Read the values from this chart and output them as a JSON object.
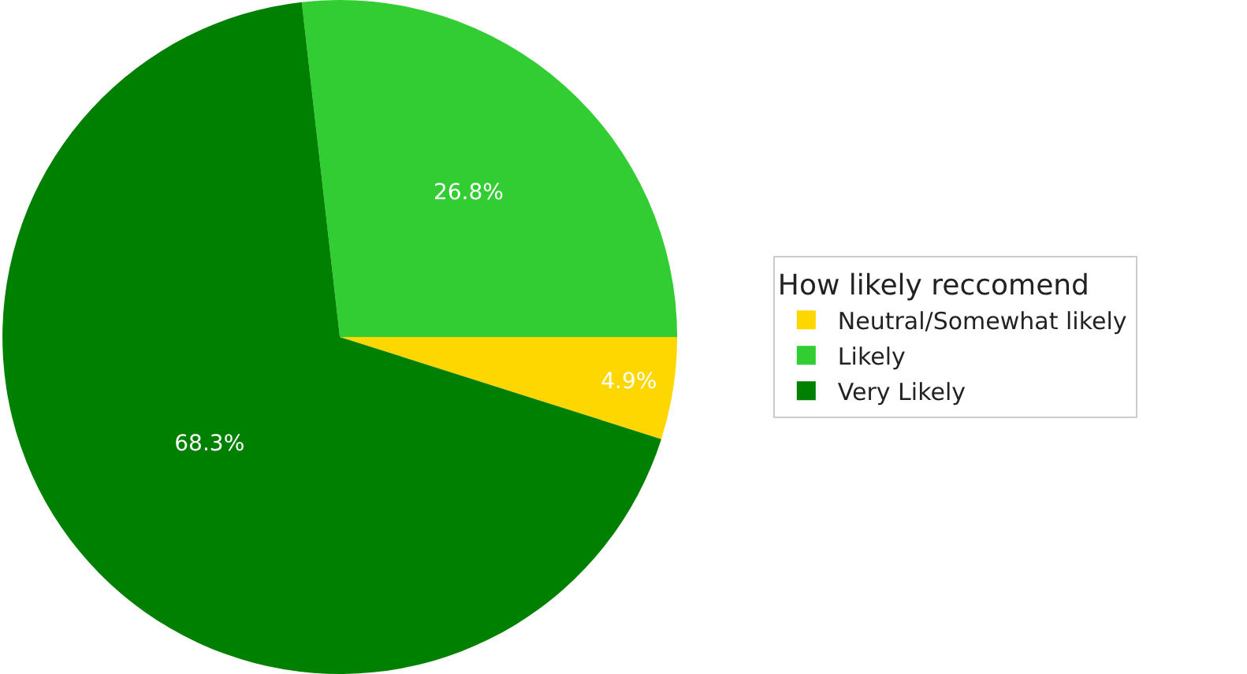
{
  "chart_data": {
    "type": "pie",
    "categories": [
      "Neutral/Somewhat likely",
      "Likely",
      "Very Likely"
    ],
    "values": [
      4.9,
      26.8,
      68.3
    ],
    "colors": [
      "#ffd700",
      "#32cd32",
      "#008000"
    ],
    "value_labels": [
      "4.9%",
      "26.8%",
      "68.3%"
    ],
    "legend_title": "How likely reccomend",
    "legend": "right"
  }
}
